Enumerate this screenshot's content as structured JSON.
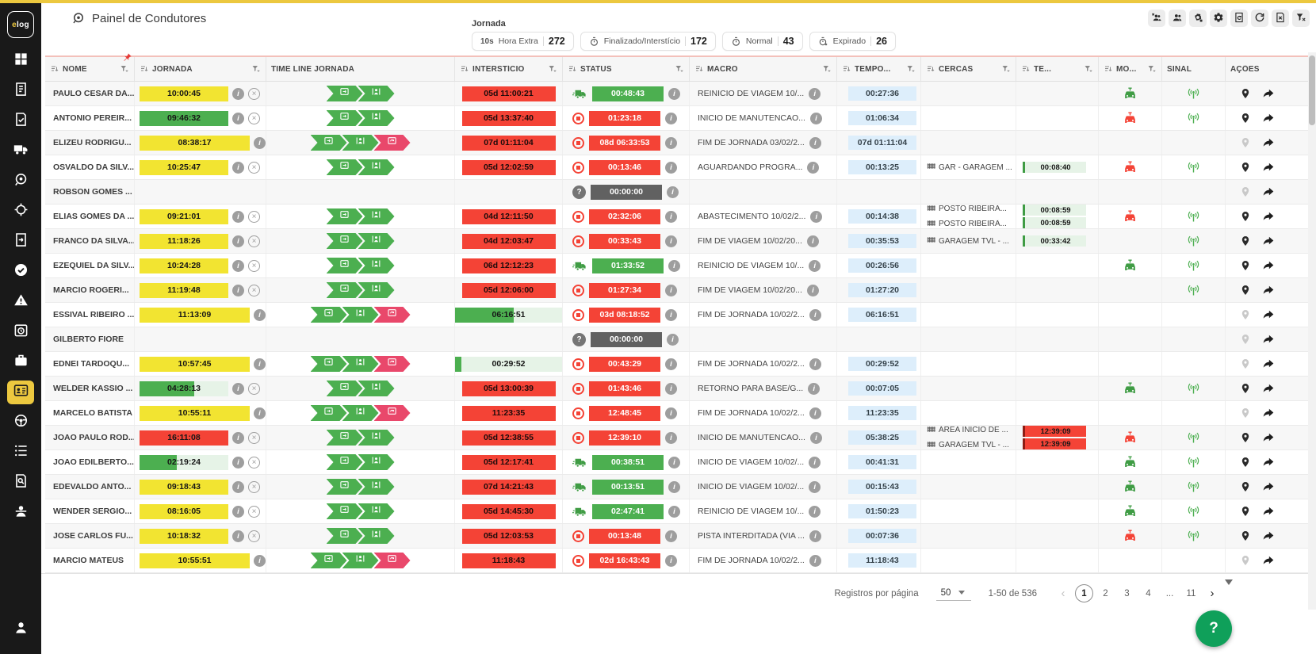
{
  "header": {
    "title": "Painel de Condutores",
    "summary_label": "Jornada",
    "chips": [
      {
        "id": "hora-extra",
        "prefix": "10s",
        "label": "Hora Extra",
        "count": "272"
      },
      {
        "id": "finalizado-intersticio",
        "icon": "timer",
        "label": "Finalizado/Interstício",
        "count": "172"
      },
      {
        "id": "normal",
        "icon": "timer",
        "label": "Normal",
        "count": "43"
      },
      {
        "id": "expirado",
        "icon": "timer-off",
        "label": "Expirado",
        "count": "26"
      }
    ],
    "toolbar": [
      {
        "name": "remove-drivers-group",
        "icon": "users-x"
      },
      {
        "name": "drivers-group",
        "icon": "users"
      },
      {
        "name": "services",
        "icon": "gear-alt"
      },
      {
        "name": "settings",
        "icon": "gear"
      },
      {
        "name": "report-history",
        "icon": "doc-refresh"
      },
      {
        "name": "refresh",
        "icon": "refresh"
      },
      {
        "name": "export-file",
        "icon": "file-x"
      },
      {
        "name": "clear-filters",
        "icon": "filter-x"
      }
    ]
  },
  "sidebar": {
    "logo": "elog",
    "items": [
      {
        "name": "dashboard",
        "icon": "grid"
      },
      {
        "name": "journal",
        "icon": "journal"
      },
      {
        "name": "checklist",
        "icon": "doc-check"
      },
      {
        "name": "vehicles",
        "icon": "truck"
      },
      {
        "name": "journeys",
        "icon": "journey"
      },
      {
        "name": "tracking",
        "icon": "target"
      },
      {
        "name": "documents",
        "icon": "doc-export"
      },
      {
        "name": "approvals",
        "icon": "check-circle"
      },
      {
        "name": "alerts",
        "icon": "warning"
      },
      {
        "name": "history",
        "icon": "history"
      },
      {
        "name": "work",
        "icon": "briefcase"
      },
      {
        "name": "driver-panel",
        "icon": "idcard",
        "active": true
      },
      {
        "name": "steering",
        "icon": "wheel"
      },
      {
        "name": "lists",
        "icon": "list"
      },
      {
        "name": "audit",
        "icon": "doc-search"
      },
      {
        "name": "drivers",
        "icon": "driver"
      }
    ],
    "bottom": {
      "name": "account",
      "icon": "user"
    }
  },
  "table": {
    "columns": [
      {
        "key": "nome",
        "label": "NOME",
        "sort": true,
        "filter": true,
        "pinned": true
      },
      {
        "key": "jornada",
        "label": "JORNADA",
        "sort": true,
        "filter": true
      },
      {
        "key": "timeline",
        "label": "TIME LINE JORNADA"
      },
      {
        "key": "intersticio",
        "label": "INTERSTÍCIO",
        "sort": true,
        "filter": true
      },
      {
        "key": "status",
        "label": "STATUS",
        "sort": true,
        "filter": true
      },
      {
        "key": "macro",
        "label": "MACRO",
        "sort": true,
        "filter": true
      },
      {
        "key": "tempo",
        "label": "TEMPO...",
        "sort": true,
        "filter": true
      },
      {
        "key": "cercas",
        "label": "CERCAS",
        "sort": true,
        "filter": true
      },
      {
        "key": "te",
        "label": "TE...",
        "sort": true,
        "filter": true
      },
      {
        "key": "mo",
        "label": "MO...",
        "sort": true,
        "filter": true
      },
      {
        "key": "sinal",
        "label": "SINAL"
      },
      {
        "key": "acoes",
        "label": "AÇÕES"
      }
    ]
  },
  "rows": [
    {
      "name": "PAULO CESAR DA...",
      "jornada": {
        "value": "10:00:45",
        "style": "yellow",
        "info": true,
        "cancel": true
      },
      "timeline": [
        "jornada",
        "condutor"
      ],
      "intersticio": {
        "value": "05d 11:00:21",
        "style": "red"
      },
      "status": {
        "icon": "truck",
        "value": "00:48:43",
        "style": "green"
      },
      "macro": "REINICIO DE VIAGEM 10/...",
      "tempo": "00:27:36",
      "cercas": [],
      "te": [],
      "mo": "green",
      "sinal": true,
      "pin": true
    },
    {
      "name": "ANTONIO PEREIR...",
      "jornada": {
        "value": "09:46:32",
        "style": "green",
        "info": true,
        "cancel": true
      },
      "timeline": [
        "jornada",
        "condutor"
      ],
      "intersticio": {
        "value": "05d 13:37:40",
        "style": "red"
      },
      "status": {
        "icon": "stop",
        "value": "01:23:18",
        "style": "red"
      },
      "macro": "INICIO DE MANUTENCAO...",
      "tempo": "01:06:34",
      "cercas": [],
      "te": [],
      "mo": "red",
      "sinal": true,
      "pin": true
    },
    {
      "name": "ELIZEU RODRIGU...",
      "jornada": {
        "value": "08:38:17",
        "style": "yellow",
        "wide": true,
        "info": true,
        "cancel": false
      },
      "timeline": [
        "jornada",
        "condutor",
        "retorno"
      ],
      "intersticio": {
        "value": "07d 01:11:04",
        "style": "red"
      },
      "status": {
        "icon": "stop",
        "value": "08d 06:33:53",
        "style": "red"
      },
      "macro": "FIM DE JORNADA 03/02/2...",
      "tempo": "07d 01:11:04",
      "cercas": [],
      "te": [],
      "mo": null,
      "sinal": false,
      "pin": false
    },
    {
      "name": "OSVALDO DA SILV...",
      "jornada": {
        "value": "10:25:47",
        "style": "yellow",
        "info": true,
        "cancel": true
      },
      "timeline": [
        "jornada",
        "condutor"
      ],
      "intersticio": {
        "value": "05d 12:02:59",
        "style": "red"
      },
      "status": {
        "icon": "stop",
        "value": "00:13:46",
        "style": "red"
      },
      "macro": "AGUARDANDO PROGRA...",
      "tempo": "00:13:25",
      "cercas": [
        "GAR - GARAGEM ..."
      ],
      "te": [
        {
          "value": "00:08:40",
          "style": "green"
        }
      ],
      "mo": "red",
      "sinal": true,
      "pin": true
    },
    {
      "name": "ROBSON GOMES ...",
      "jornada": null,
      "timeline": [],
      "intersticio": null,
      "status": {
        "icon": "question",
        "value": "00:00:00",
        "style": "gray"
      },
      "macro": "",
      "tempo": "",
      "cercas": [],
      "te": [],
      "mo": null,
      "sinal": false,
      "pin": false
    },
    {
      "name": "ELIAS GOMES DA ...",
      "jornada": {
        "value": "09:21:01",
        "style": "yellow",
        "info": true,
        "cancel": true
      },
      "timeline": [
        "jornada",
        "condutor"
      ],
      "intersticio": {
        "value": "04d 12:11:50",
        "style": "red"
      },
      "status": {
        "icon": "stop",
        "value": "02:32:06",
        "style": "red"
      },
      "macro": "ABASTECIMENTO 10/02/2...",
      "tempo": "00:14:38",
      "cercas": [
        "POSTO RIBEIRA...",
        "POSTO RIBEIRÃ..."
      ],
      "te": [
        {
          "value": "00:08:59",
          "style": "green"
        },
        {
          "value": "00:08:59",
          "style": "green"
        }
      ],
      "mo": "red",
      "sinal": true,
      "pin": true
    },
    {
      "name": "FRANCO DA SILVA...",
      "jornada": {
        "value": "11:18:26",
        "style": "yellow",
        "info": true,
        "cancel": true
      },
      "timeline": [
        "jornada",
        "condutor"
      ],
      "intersticio": {
        "value": "04d 12:03:47",
        "style": "red"
      },
      "status": {
        "icon": "stop",
        "value": "00:33:43",
        "style": "red"
      },
      "macro": "FIM DE VIAGEM 10/02/20...",
      "tempo": "00:35:53",
      "cercas": [
        "GARAGEM TVL - ..."
      ],
      "te": [
        {
          "value": "00:33:42",
          "style": "green"
        }
      ],
      "mo": null,
      "sinal": true,
      "pin": true
    },
    {
      "name": "EZEQUIEL DA SILV...",
      "jornada": {
        "value": "10:24:28",
        "style": "yellow",
        "info": true,
        "cancel": true
      },
      "timeline": [
        "jornada",
        "condutor"
      ],
      "intersticio": {
        "value": "06d 12:12:23",
        "style": "red"
      },
      "status": {
        "icon": "truck",
        "value": "01:33:52",
        "style": "green"
      },
      "macro": "REINICIO DE VIAGEM 10/...",
      "tempo": "00:26:56",
      "cercas": [],
      "te": [],
      "mo": "green",
      "sinal": true,
      "pin": true
    },
    {
      "name": "MARCIO ROGERI...",
      "jornada": {
        "value": "11:19:48",
        "style": "yellow",
        "info": true,
        "cancel": true
      },
      "timeline": [
        "jornada",
        "condutor"
      ],
      "intersticio": {
        "value": "05d 12:06:00",
        "style": "red"
      },
      "status": {
        "icon": "stop",
        "value": "01:27:34",
        "style": "red"
      },
      "macro": "FIM DE VIAGEM 10/02/20...",
      "tempo": "01:27:20",
      "cercas": [],
      "te": [],
      "mo": null,
      "sinal": true,
      "pin": true
    },
    {
      "name": "ESSIVAL RIBEIRO ...",
      "jornada": {
        "value": "11:13:09",
        "style": "yellow",
        "wide": true,
        "info": true,
        "cancel": false
      },
      "timeline": [
        "jornada",
        "condutor",
        "retorno"
      ],
      "intersticio": {
        "value": "06:16:51",
        "style": "progress",
        "pct": 55
      },
      "status": {
        "icon": "stop",
        "value": "03d 08:18:52",
        "style": "red"
      },
      "macro": "FIM DE JORNADA 10/02/2...",
      "tempo": "06:16:51",
      "cercas": [],
      "te": [],
      "mo": null,
      "sinal": false,
      "pin": false
    },
    {
      "name": "GILBERTO FIORE",
      "jornada": null,
      "timeline": [],
      "intersticio": null,
      "status": {
        "icon": "question",
        "value": "00:00:00",
        "style": "gray"
      },
      "macro": "",
      "tempo": "",
      "cercas": [],
      "te": [],
      "mo": null,
      "sinal": false,
      "pin": false
    },
    {
      "name": "EDNEI TARDOQU...",
      "jornada": {
        "value": "10:57:45",
        "style": "yellow",
        "wide": true,
        "info": true,
        "cancel": false
      },
      "timeline": [
        "jornada",
        "condutor",
        "retorno"
      ],
      "intersticio": {
        "value": "00:29:52",
        "style": "progress",
        "pct": 6
      },
      "status": {
        "icon": "stop",
        "value": "00:43:29",
        "style": "red"
      },
      "macro": "FIM DE JORNADA 10/02/2...",
      "tempo": "00:29:52",
      "cercas": [],
      "te": [],
      "mo": null,
      "sinal": false,
      "pin": false
    },
    {
      "name": "WELDER KASSIO ...",
      "jornada": {
        "value": "04:28:13",
        "style": "progress",
        "pct": 62,
        "info": true,
        "cancel": true
      },
      "timeline": [
        "jornada",
        "condutor"
      ],
      "intersticio": {
        "value": "05d 13:00:39",
        "style": "red"
      },
      "status": {
        "icon": "stop",
        "value": "01:43:46",
        "style": "red"
      },
      "macro": "RETORNO PARA BASE/G...",
      "tempo": "00:07:05",
      "cercas": [],
      "te": [],
      "mo": "green",
      "sinal": true,
      "pin": true
    },
    {
      "name": "MARCELO BATISTA",
      "jornada": {
        "value": "10:55:11",
        "style": "yellow",
        "wide": true,
        "info": true,
        "cancel": false
      },
      "timeline": [
        "jornada",
        "condutor",
        "retorno"
      ],
      "intersticio": {
        "value": "11:23:35",
        "style": "red"
      },
      "status": {
        "icon": "stop",
        "value": "12:48:45",
        "style": "red"
      },
      "macro": "FIM DE JORNADA 10/02/2...",
      "tempo": "11:23:35",
      "cercas": [],
      "te": [],
      "mo": null,
      "sinal": false,
      "pin": false
    },
    {
      "name": "JOAO PAULO ROD...",
      "jornada": {
        "value": "16:11:08",
        "style": "red",
        "info": true,
        "cancel": true
      },
      "timeline": [
        "jornada",
        "condutor"
      ],
      "intersticio": {
        "value": "05d 12:38:55",
        "style": "red"
      },
      "status": {
        "icon": "stop",
        "value": "12:39:10",
        "style": "red"
      },
      "macro": "INICIO DE MANUTENCAO...",
      "tempo": "05:38:25",
      "cercas": [
        "ÁREA INICIO DE ...",
        "GARAGEM TVL - ..."
      ],
      "te": [
        {
          "value": "12:39:09",
          "style": "red"
        },
        {
          "value": "12:39:09",
          "style": "red"
        }
      ],
      "mo": "red",
      "sinal": true,
      "pin": true
    },
    {
      "name": "JOAO EDILBERTO...",
      "jornada": {
        "value": "02:19:24",
        "style": "progress",
        "pct": 42,
        "info": true,
        "cancel": true
      },
      "timeline": [
        "jornada",
        "condutor"
      ],
      "intersticio": {
        "value": "05d 12:17:41",
        "style": "red"
      },
      "status": {
        "icon": "truck",
        "value": "00:38:51",
        "style": "green"
      },
      "macro": "INICIO DE VIAGEM 10/02/...",
      "tempo": "00:41:31",
      "cercas": [],
      "te": [],
      "mo": "green",
      "sinal": true,
      "pin": true
    },
    {
      "name": "EDEVALDO ANTO...",
      "jornada": {
        "value": "09:18:43",
        "style": "yellow",
        "info": true,
        "cancel": true
      },
      "timeline": [
        "jornada",
        "condutor"
      ],
      "intersticio": {
        "value": "07d 14:21:43",
        "style": "red"
      },
      "status": {
        "icon": "truck",
        "value": "00:13:51",
        "style": "green"
      },
      "macro": "INICIO DE VIAGEM 10/02/...",
      "tempo": "00:15:43",
      "cercas": [],
      "te": [],
      "mo": "green",
      "sinal": true,
      "pin": true
    },
    {
      "name": "WENDER SERGIO...",
      "jornada": {
        "value": "08:16:05",
        "style": "yellow",
        "info": true,
        "cancel": true
      },
      "timeline": [
        "jornada",
        "condutor"
      ],
      "intersticio": {
        "value": "05d 14:45:30",
        "style": "red"
      },
      "status": {
        "icon": "truck",
        "value": "02:47:41",
        "style": "green"
      },
      "macro": "REINICIO DE VIAGEM 10/...",
      "tempo": "01:50:23",
      "cercas": [],
      "te": [],
      "mo": "green",
      "sinal": true,
      "pin": true
    },
    {
      "name": "JOSE CARLOS FU...",
      "jornada": {
        "value": "10:18:32",
        "style": "yellow",
        "info": true,
        "cancel": true
      },
      "timeline": [
        "jornada",
        "condutor"
      ],
      "intersticio": {
        "value": "05d 12:03:53",
        "style": "red"
      },
      "status": {
        "icon": "stop",
        "value": "00:13:48",
        "style": "red"
      },
      "macro": "PISTA INTERDITADA (VIA ...",
      "tempo": "00:07:36",
      "cercas": [],
      "te": [],
      "mo": "red",
      "sinal": true,
      "pin": true
    },
    {
      "name": "MARCIO MATEUS",
      "jornada": {
        "value": "10:55:51",
        "style": "yellow",
        "wide": true,
        "info": true,
        "cancel": false
      },
      "timeline": [
        "jornada",
        "condutor",
        "retorno"
      ],
      "intersticio": {
        "value": "11:18:43",
        "style": "red"
      },
      "status": {
        "icon": "stop",
        "value": "02d 16:43:43",
        "style": "red"
      },
      "macro": "FIM DE JORNADA 10/02/2...",
      "tempo": "11:18:43",
      "cercas": [],
      "te": [],
      "mo": null,
      "sinal": false,
      "pin": false
    }
  ],
  "footer": {
    "page_size_label": "Registros por página",
    "page_size": "50",
    "range": "1-50 de 536",
    "prev_label": "‹",
    "next_label": "›",
    "pages": [
      "1",
      "2",
      "3",
      "4",
      "...",
      "11"
    ],
    "active_page": "1",
    "help_label": "?"
  },
  "colors": {
    "accent_yellow": "#ecc83f",
    "badge_yellow": "#f2e431",
    "green": "#4caf50",
    "green_dark": "#3f9c44",
    "red": "#f44336",
    "pink": "#e9486b",
    "light_blue": "#ddeefb",
    "light_green": "#e6f3e7",
    "gray_badge": "#616161",
    "sidebar_bg": "#191919",
    "help_green": "#0fa05a"
  }
}
